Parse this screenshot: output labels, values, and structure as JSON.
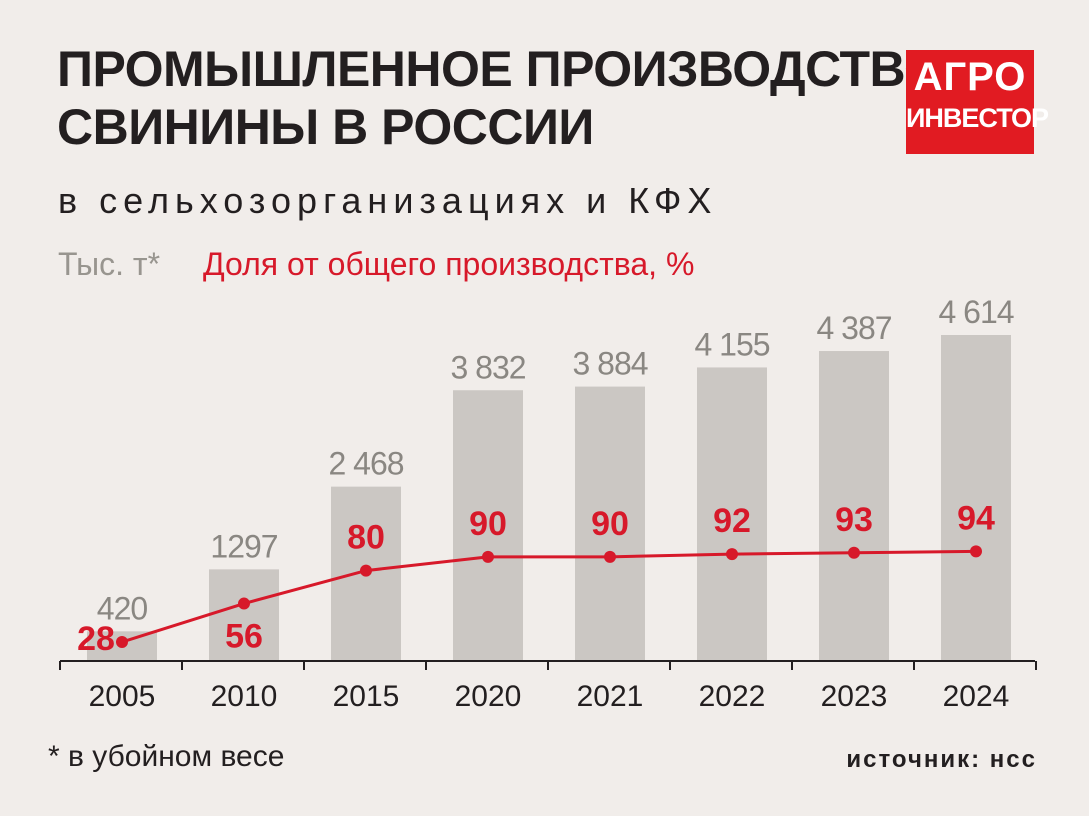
{
  "header": {
    "title_line1": "ПРОМЫШЛЕННОЕ ПРОИЗВОДСТВО",
    "title_line2": "СВИНИНЫ В РОССИИ",
    "subtitle": "в сельхозорганизациях и КФХ"
  },
  "logo": {
    "line1": "АГРО",
    "line2": "ИНВЕСТОР"
  },
  "legend": {
    "unit": "Тыс. т*",
    "share": "Доля от общего производства, %"
  },
  "chart_data": {
    "type": "bar",
    "title": "ПРОМЫШЛЕННОЕ ПРОИЗВОДСТВО СВИНИНЫ В РОССИИ",
    "subtitle": "в сельхозорганизациях и КФХ",
    "categories": [
      "2005",
      "2010",
      "2015",
      "2020",
      "2021",
      "2022",
      "2023",
      "2024"
    ],
    "series": [
      {
        "name": "Тыс. т*",
        "type": "bar",
        "values": [
          420,
          1297,
          2468,
          3832,
          3884,
          4155,
          4387,
          4614
        ],
        "labels": [
          "420",
          "1297",
          "2 468",
          "3 832",
          "3 884",
          "4 155",
          "4 387",
          "4 614"
        ],
        "color": "#cbc7c3",
        "label_color": "#8a8782"
      },
      {
        "name": "Доля от общего производства, %",
        "type": "line",
        "values": [
          28,
          56,
          80,
          90,
          90,
          92,
          93,
          94
        ],
        "labels": [
          "28",
          "56",
          "80",
          "90",
          "90",
          "92",
          "93",
          "94"
        ],
        "color": "#d7192a"
      }
    ],
    "ylim": [
      0,
      4614
    ],
    "grid": false,
    "xlabel": "",
    "ylabel": ""
  },
  "footer": {
    "footnote": "* в убойном весе",
    "source": "источник: нсс"
  }
}
